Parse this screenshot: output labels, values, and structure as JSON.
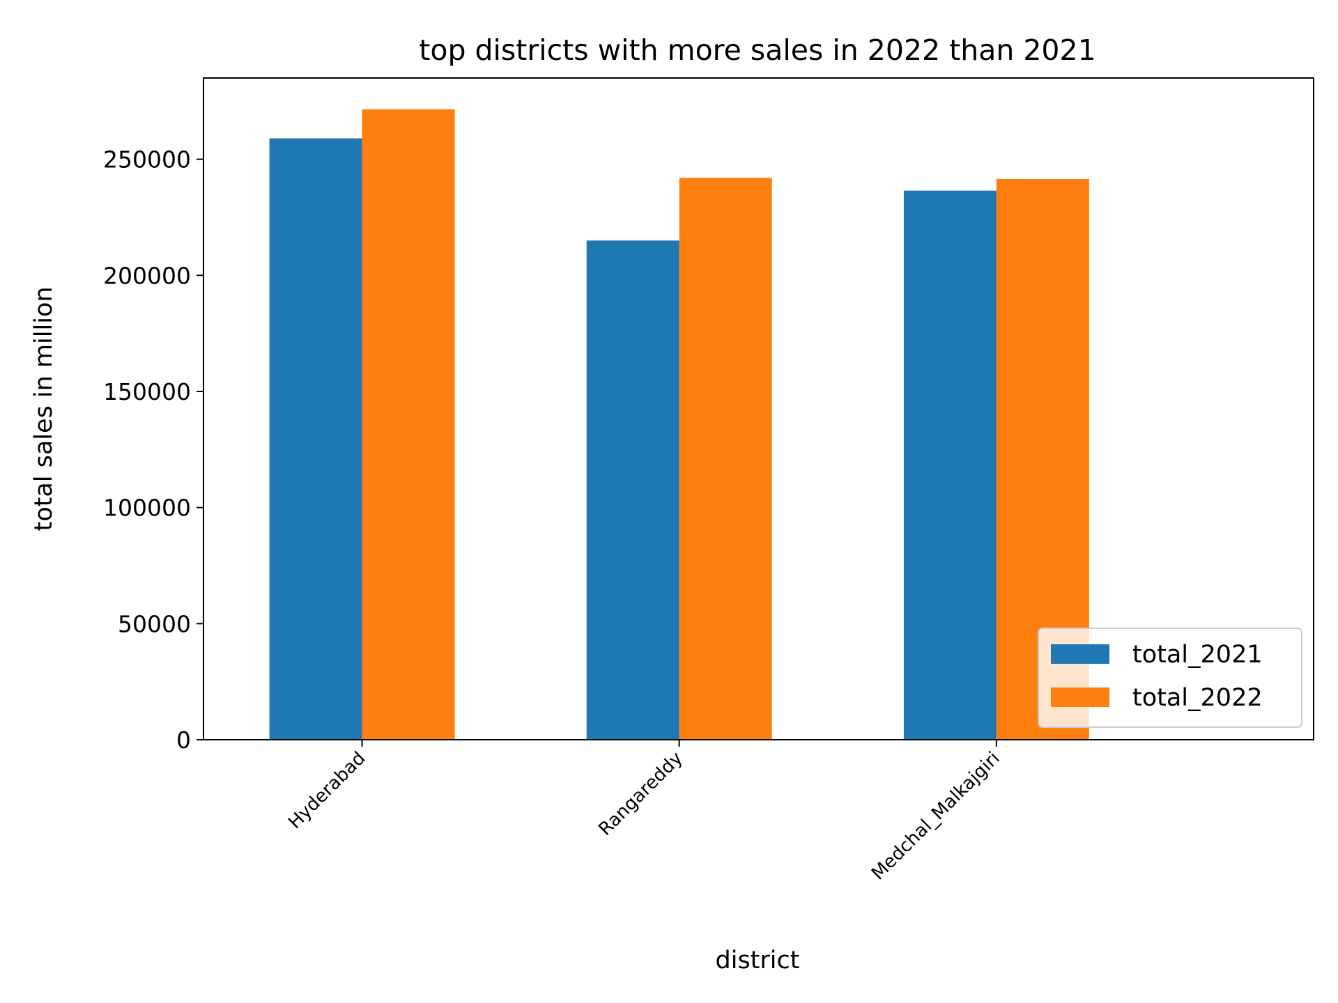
{
  "chart_data": {
    "type": "bar",
    "title": "top districts with more sales in 2022 than 2021",
    "xlabel": "district",
    "ylabel": "total sales in million",
    "categories": [
      "Hyderabad",
      "Rangareddy",
      "Medchal_Malkajgiri"
    ],
    "series": [
      {
        "name": "total_2021",
        "color": "#1f77b4",
        "values": [
          259000,
          215000,
          236500
        ]
      },
      {
        "name": "total_2022",
        "color": "#ff7f0e",
        "values": [
          271500,
          242000,
          241500
        ]
      }
    ],
    "ylim": [
      0,
      285000
    ],
    "yticks": [
      0,
      50000,
      100000,
      150000,
      200000,
      250000
    ],
    "ytick_labels": [
      "0",
      "50000",
      "100000",
      "150000",
      "200000",
      "250000"
    ],
    "grid": false,
    "legend_position": "lower-right"
  }
}
